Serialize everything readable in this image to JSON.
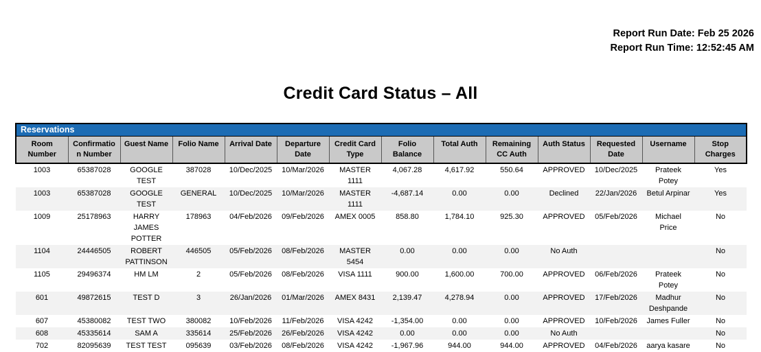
{
  "report": {
    "run_date": "Report Run Date: Feb 25 2026",
    "run_time": "Report Run Time: 12:52:45 AM",
    "title": "Credit Card Status – All"
  },
  "colors": {
    "section_bar_blue": "#1c6cb4",
    "header_gray": "#c9c9c9",
    "row_alt_gray": "#f2f2f2",
    "border_black": "#000000"
  },
  "reservations": {
    "section_title": "Reservations",
    "columns": [
      "Room\nNumber",
      "Confirmatio\nn Number",
      "Guest Name",
      "Folio Name",
      "Arrival Date",
      "Departure\nDate",
      "Credit Card\nType",
      "Folio\nBalance",
      "Total Auth",
      "Remaining\nCC Auth",
      "Auth Status",
      "Requested\nDate",
      "Username",
      "Stop\nCharges"
    ],
    "rows": [
      [
        "1003",
        "65387028",
        "GOOGLE\nTEST",
        "387028",
        "10/Dec/2025",
        "10/Mar/2026",
        "MASTER\n1111",
        "4,067.28",
        "4,617.92",
        "550.64",
        "APPROVED",
        "10/Dec/2025",
        "Prateek\nPotey",
        "Yes"
      ],
      [
        "1003",
        "65387028",
        "GOOGLE\nTEST",
        "GENERAL",
        "10/Dec/2025",
        "10/Mar/2026",
        "MASTER\n1111",
        "-4,687.14",
        "0.00",
        "0.00",
        "Declined",
        "22/Jan/2026",
        "Betul Arpinar",
        "Yes"
      ],
      [
        "1009",
        "25178963",
        "HARRY\nJAMES\nPOTTER",
        "178963",
        "04/Feb/2026",
        "09/Feb/2026",
        "AMEX 0005",
        "858.80",
        "1,784.10",
        "925.30",
        "APPROVED",
        "05/Feb/2026",
        "Michael Price",
        "No"
      ],
      [
        "1104",
        "24446505",
        "ROBERT\nPATTINSON",
        "446505",
        "05/Feb/2026",
        "08/Feb/2026",
        "MASTER\n5454",
        "0.00",
        "0.00",
        "0.00",
        "No Auth",
        "",
        "",
        "No"
      ],
      [
        "1105",
        "29496374",
        "HM LM",
        "2",
        "05/Feb/2026",
        "08/Feb/2026",
        "VISA 1111",
        "900.00",
        "1,600.00",
        "700.00",
        "APPROVED",
        "06/Feb/2026",
        "Prateek\nPotey",
        "No"
      ],
      [
        "601",
        "49872615",
        "TEST D",
        "3",
        "26/Jan/2026",
        "01/Mar/2026",
        "AMEX 8431",
        "2,139.47",
        "4,278.94",
        "0.00",
        "APPROVED",
        "17/Feb/2026",
        "Madhur\nDeshpande",
        "No"
      ],
      [
        "607",
        "45380082",
        "TEST TWO",
        "380082",
        "10/Feb/2026",
        "11/Feb/2026",
        "VISA 4242",
        "-1,354.00",
        "0.00",
        "0.00",
        "APPROVED",
        "10/Feb/2026",
        "James Fuller",
        "No"
      ],
      [
        "608",
        "45335614",
        "SAM A",
        "335614",
        "25/Feb/2026",
        "26/Feb/2026",
        "VISA 4242",
        "0.00",
        "0.00",
        "0.00",
        "No Auth",
        "",
        "",
        "No"
      ],
      [
        "702",
        "82095639",
        "TEST TEST",
        "095639",
        "03/Feb/2026",
        "08/Feb/2026",
        "VISA 4242",
        "-1,967.96",
        "944.00",
        "944.00",
        "APPROVED",
        "04/Feb/2026",
        "aarya kasare",
        "No"
      ]
    ]
  }
}
